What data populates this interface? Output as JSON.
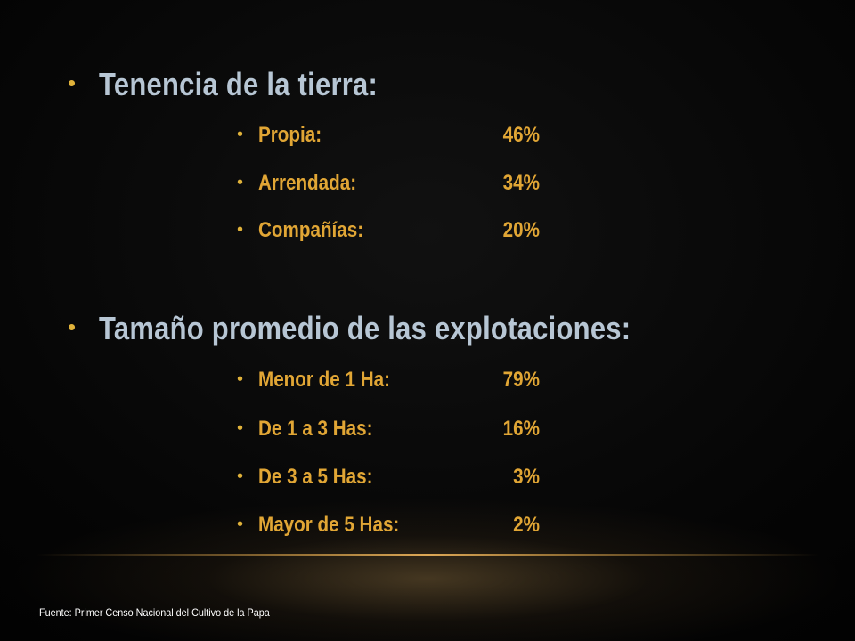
{
  "sections": [
    {
      "heading": "Tenencia de la tierra:",
      "items": [
        {
          "label": "Propia:",
          "value": "46%"
        },
        {
          "label": "Arrendada:",
          "value": "34%"
        },
        {
          "label": "Compañías:",
          "value": "20%"
        }
      ]
    },
    {
      "heading": "Tamaño promedio de las explotaciones:",
      "items": [
        {
          "label": "Menor de 1 Ha:",
          "value": "79%"
        },
        {
          "label": "De 1 a 3 Has:",
          "value": "16%"
        },
        {
          "label": "De 3 a 5 Has:",
          "value": "3%"
        },
        {
          "label": "Mayor de 5 Has:",
          "value": "2%"
        }
      ]
    }
  ],
  "bullet_glyph": "•",
  "footer": {
    "source": "Fuente: Primer Censo Nacional del Cultivo de la Papa"
  },
  "colors": {
    "heading": "#b7c6d4",
    "accent": "#e1a635",
    "background": "#000000"
  }
}
